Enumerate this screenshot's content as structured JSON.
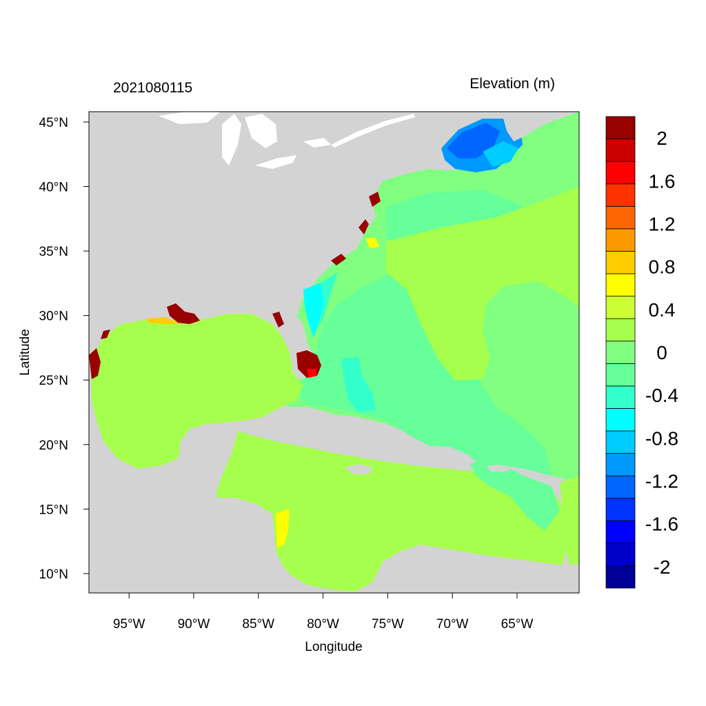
{
  "left_title": "2021080115",
  "right_title": "Elevation (m)",
  "xlabel": "Longitude",
  "ylabel": "Latitude",
  "x_ticks": [
    {
      "value": -95,
      "label": "95°W"
    },
    {
      "value": -90,
      "label": "90°W"
    },
    {
      "value": -85,
      "label": "85°W"
    },
    {
      "value": -80,
      "label": "80°W"
    },
    {
      "value": -75,
      "label": "75°W"
    },
    {
      "value": -70,
      "label": "70°W"
    },
    {
      "value": -65,
      "label": "65°W"
    }
  ],
  "y_ticks": [
    {
      "value": 45,
      "label": "45°N"
    },
    {
      "value": 40,
      "label": "40°N"
    },
    {
      "value": 35,
      "label": "35°N"
    },
    {
      "value": 30,
      "label": "30°N"
    },
    {
      "value": 25,
      "label": "25°N"
    },
    {
      "value": 20,
      "label": "20°N"
    },
    {
      "value": 15,
      "label": "15°N"
    },
    {
      "value": 10,
      "label": "10°N"
    }
  ],
  "lon_range": [
    -98.1,
    -60.2
  ],
  "lat_range": [
    8.5,
    45.8
  ],
  "colorbar": {
    "colors": [
      "#000099",
      "#0000CC",
      "#0000FF",
      "#0033FF",
      "#0066FF",
      "#0099FF",
      "#00CCFF",
      "#00FFFF",
      "#33FFCC",
      "#66FF99",
      "#80FF80",
      "#A6FF4D",
      "#CCFF33",
      "#FFFF00",
      "#FFCC00",
      "#FF9900",
      "#FF6600",
      "#FF3300",
      "#FF0000",
      "#CC0000",
      "#990000"
    ],
    "labels": [
      {
        "value": -2,
        "label": "-2"
      },
      {
        "value": -1.6,
        "label": "-1.6"
      },
      {
        "value": -1.2,
        "label": "-1.2"
      },
      {
        "value": -0.8,
        "label": "-0.8"
      },
      {
        "value": -0.4,
        "label": "-0.4"
      },
      {
        "value": 0,
        "label": "0"
      },
      {
        "value": 0.4,
        "label": "0.4"
      },
      {
        "value": 0.8,
        "label": "0.8"
      },
      {
        "value": 1.2,
        "label": "1.2"
      },
      {
        "value": 1.6,
        "label": "1.6"
      },
      {
        "value": 2,
        "label": "2"
      }
    ]
  },
  "palette": {
    "land": "#D3D3D3",
    "ocean_base": "#A6FF4D",
    "ocean_atlantic": "#80FF80",
    "ocean_neg_mid": "#66FF99",
    "ocean_neg": "#33FFCC",
    "ocean_blue": "#0099FF",
    "ocean_deep_blue": "#0066FF",
    "yellow": "#FFFF00",
    "dark_red": "#990000",
    "red": "#FF0000"
  }
}
